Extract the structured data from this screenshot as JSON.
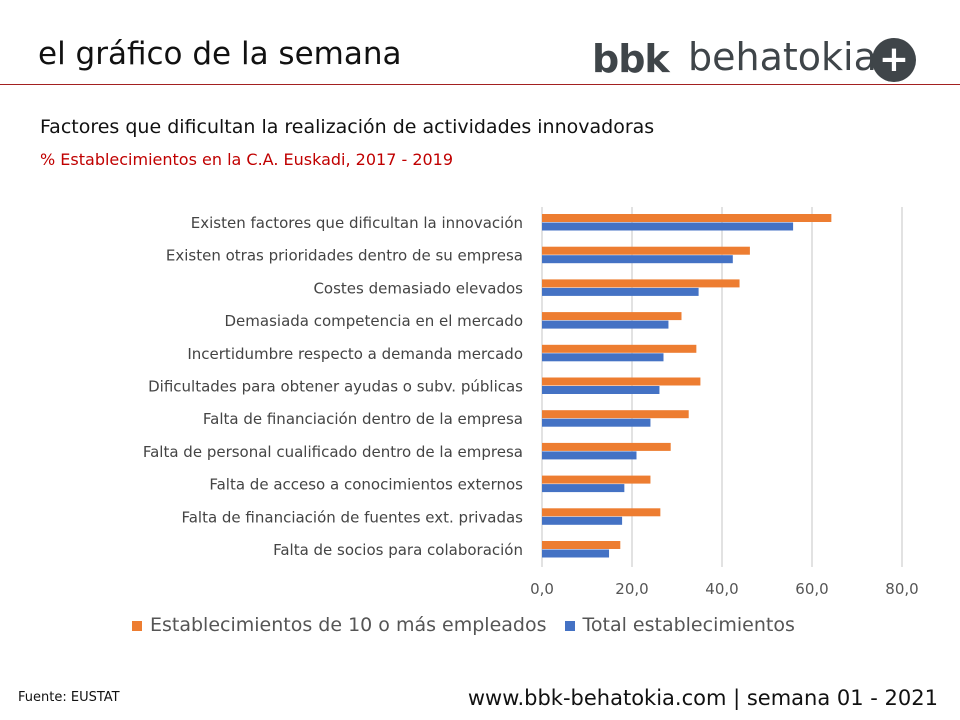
{
  "header": {
    "title": "el gráfico de la semana",
    "logo_bold": "bbk",
    "logo_light": "behatokia",
    "logo_symbol": "+"
  },
  "colors": {
    "orange": "#ed7d31",
    "blue": "#4472c4",
    "accent": "#c00000"
  },
  "chart_data": {
    "type": "bar",
    "orientation": "horizontal",
    "title": "Factores que dificultan la realización de actividades innovadoras",
    "subtitle": "% Establecimientos  en la C.A. Euskadi, 2017 - 2019",
    "categories": [
      "Existen factores que dificultan la innovación",
      "Existen otras prioridades dentro de su empresa",
      "Costes demasiado elevados",
      "Demasiada competencia en el mercado",
      "Incertidumbre respecto a demanda mercado",
      "Dificultades para obtener ayudas o subv. públicas",
      "Falta de financiación dentro de la empresa",
      "Falta de personal cualificado dentro de la empresa",
      "Falta de acceso a conocimientos externos",
      "Falta de financiación de fuentes ext. privadas",
      "Falta de socios para colaboración"
    ],
    "series": [
      {
        "name": "Establecimientos de 10 o más empleados",
        "color": "#ed7d31",
        "values": [
          64.3,
          46.2,
          43.9,
          31.0,
          34.3,
          35.2,
          32.6,
          28.6,
          24.1,
          26.3,
          17.4
        ]
      },
      {
        "name": "Total establecimientos",
        "color": "#4472c4",
        "values": [
          55.8,
          42.4,
          34.8,
          28.1,
          27.0,
          26.1,
          24.1,
          21.0,
          18.3,
          17.8,
          14.9
        ]
      }
    ],
    "xlim": [
      0,
      80
    ],
    "xticks": [
      "0,0",
      "20,0",
      "40,0",
      "60,0",
      "80,0"
    ],
    "grid": true,
    "legend": "bottom"
  },
  "footer": {
    "source": "Fuente:  EUSTAT",
    "site": "www.bbk-behatokia.com | semana 01 - 2021"
  }
}
